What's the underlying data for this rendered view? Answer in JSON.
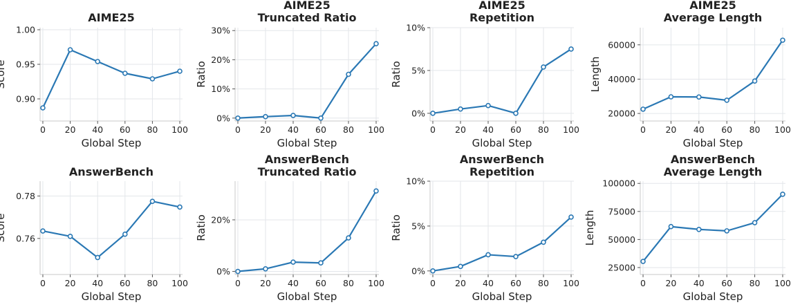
{
  "colors": {
    "series": "#2a78b4",
    "grid": "#e3e6ea"
  },
  "chart_data": [
    {
      "type": "line",
      "title_lines": [
        "AIME25"
      ],
      "xlabel": "Global Step",
      "ylabel": "Score",
      "x": [
        0,
        20,
        40,
        60,
        80,
        100
      ],
      "xticks": [
        0,
        20,
        40,
        60,
        80,
        100
      ],
      "xlim": [
        -2,
        102
      ],
      "y": [
        0.887,
        0.971,
        0.954,
        0.937,
        0.929,
        0.94
      ],
      "ylim": [
        0.868,
        1.003
      ],
      "yticks": [
        0.9,
        0.95,
        1.0
      ],
      "ytick_labels": [
        "0.90",
        "0.95",
        "1.00"
      ],
      "grid": true
    },
    {
      "type": "line",
      "title_lines": [
        "AIME25",
        "Truncated Ratio"
      ],
      "xlabel": "Global Step",
      "ylabel": "Ratio",
      "x": [
        0,
        20,
        40,
        60,
        80,
        100
      ],
      "xticks": [
        0,
        20,
        40,
        60,
        80,
        100
      ],
      "xlim": [
        -2,
        102
      ],
      "y": [
        0.0,
        0.5,
        0.9,
        0.0,
        15.0,
        25.5
      ],
      "ylim": [
        -1.0,
        31.0
      ],
      "yticks": [
        0,
        10,
        20,
        30
      ],
      "ytick_labels": [
        "0%",
        "10%",
        "20%",
        "30%"
      ],
      "grid": true
    },
    {
      "type": "line",
      "title_lines": [
        "AIME25",
        "Repetition"
      ],
      "xlabel": "Global Step",
      "ylabel": "Ratio",
      "x": [
        0,
        20,
        40,
        60,
        80,
        100
      ],
      "xticks": [
        0,
        20,
        40,
        60,
        80,
        100
      ],
      "xlim": [
        -2,
        102
      ],
      "y": [
        0.0,
        0.5,
        0.9,
        0.0,
        5.4,
        7.5
      ],
      "ylim": [
        -0.9,
        10.0
      ],
      "yticks": [
        0,
        5,
        10
      ],
      "ytick_labels": [
        "0%",
        "5%",
        "10%"
      ],
      "grid": true
    },
    {
      "type": "line",
      "title_lines": [
        "AIME25",
        "Average Length"
      ],
      "xlabel": "Global Step",
      "ylabel": "Length",
      "x": [
        0,
        20,
        40,
        60,
        80,
        100
      ],
      "xticks": [
        0,
        20,
        40,
        60,
        80,
        100
      ],
      "xlim": [
        -2,
        102
      ],
      "y": [
        22500,
        29700,
        29600,
        27700,
        38900,
        62700
      ],
      "ylim": [
        15600,
        70000
      ],
      "yticks": [
        20000,
        40000,
        60000
      ],
      "ytick_labels": [
        "20000",
        "40000",
        "60000"
      ],
      "grid": true
    },
    {
      "type": "line",
      "title_lines": [
        "AnswerBench"
      ],
      "xlabel": "Global Step",
      "ylabel": "Score",
      "x": [
        0,
        20,
        40,
        60,
        80,
        100
      ],
      "xticks": [
        0,
        20,
        40,
        60,
        80,
        100
      ],
      "xlim": [
        -2,
        102
      ],
      "y": [
        0.7635,
        0.761,
        0.751,
        0.762,
        0.7775,
        0.7748
      ],
      "ylim": [
        0.743,
        0.787
      ],
      "yticks": [
        0.76,
        0.78
      ],
      "ytick_labels": [
        "0.76",
        "0.78"
      ],
      "grid": true
    },
    {
      "type": "line",
      "title_lines": [
        "AnswerBench",
        "Truncated Ratio"
      ],
      "xlabel": "Global Step",
      "ylabel": "Ratio",
      "x": [
        0,
        20,
        40,
        60,
        80,
        100
      ],
      "xticks": [
        0,
        20,
        40,
        60,
        80,
        100
      ],
      "xlim": [
        -2,
        102
      ],
      "y": [
        0.0,
        1.0,
        3.6,
        3.3,
        13.0,
        31.2
      ],
      "ylim": [
        -1.2,
        35.0
      ],
      "yticks": [
        0,
        20
      ],
      "ytick_labels": [
        "0%",
        "20%"
      ],
      "grid": true
    },
    {
      "type": "line",
      "title_lines": [
        "AnswerBench",
        "Repetition"
      ],
      "xlabel": "Global Step",
      "ylabel": "Ratio",
      "x": [
        0,
        20,
        40,
        60,
        80,
        100
      ],
      "xticks": [
        0,
        20,
        40,
        60,
        80,
        100
      ],
      "xlim": [
        -2,
        102
      ],
      "y": [
        0.0,
        0.5,
        1.8,
        1.6,
        3.2,
        6.0
      ],
      "ylim": [
        -0.4,
        10.0
      ],
      "yticks": [
        0,
        5,
        10
      ],
      "ytick_labels": [
        "0%",
        "5%",
        "10%"
      ],
      "grid": true
    },
    {
      "type": "line",
      "title_lines": [
        "AnswerBench",
        "Average Length"
      ],
      "xlabel": "Global Step",
      "ylabel": "Length",
      "x": [
        0,
        20,
        40,
        60,
        80,
        100
      ],
      "xticks": [
        0,
        20,
        40,
        60,
        80,
        100
      ],
      "xlim": [
        -2,
        102
      ],
      "y": [
        30500,
        61500,
        59000,
        57700,
        65000,
        90300
      ],
      "ylim": [
        18800,
        102000
      ],
      "yticks": [
        25000,
        50000,
        75000,
        100000
      ],
      "ytick_labels": [
        "25000",
        "50000",
        "75000",
        "100000"
      ],
      "grid": true
    }
  ]
}
